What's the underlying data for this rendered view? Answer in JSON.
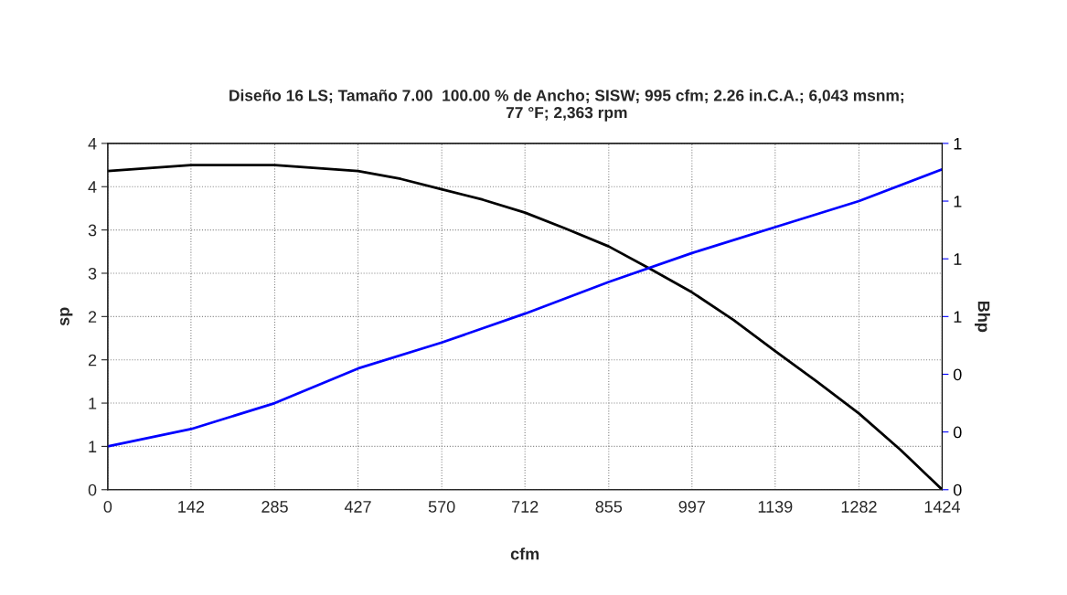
{
  "chart_data": {
    "type": "line",
    "title": "Diseño 16 LS; Tamaño 7.00  100.00 % de Ancho; SISW; 995 cfm; 2.26 in.C.A.; 6,043 msnm;\n77 °F; 2,363 rpm",
    "xlabel": "cfm",
    "ylabel": "sp",
    "y2label": "Bhp",
    "x": [
      0,
      142,
      213,
      285,
      427,
      500,
      570,
      640,
      712,
      780,
      855,
      926,
      997,
      1068,
      1139,
      1210,
      1282,
      1353,
      1424
    ],
    "series": [
      {
        "color": "#000000",
        "values": [
          3.68,
          3.75,
          3.75,
          3.75,
          3.68,
          3.59,
          3.47,
          3.35,
          3.2,
          3.02,
          2.81,
          2.55,
          2.28,
          1.96,
          1.6,
          1.25,
          0.88,
          0.46,
          0
        ]
      },
      {
        "color": "#0000ff",
        "axis": "y2",
        "x": [
          0,
          142,
          285,
          427,
          570,
          712,
          855,
          997,
          1139,
          1282,
          1424
        ],
        "values": [
          0.15,
          0.21,
          0.3,
          0.42,
          0.51,
          0.61,
          0.72,
          0.82,
          0.91,
          1.0,
          1.11
        ]
      }
    ],
    "xlim": [
      0,
      1424
    ],
    "xticks": [
      0,
      142,
      285,
      427,
      570,
      712,
      855,
      997,
      1139,
      1282,
      1424
    ],
    "ylim": [
      0,
      4
    ],
    "yticks": [
      0,
      {
        "value": 0.5,
        "label": "1"
      },
      1,
      {
        "value": 1.5,
        "label": "2"
      },
      2,
      {
        "value": 2.5,
        "label": "3"
      },
      3,
      {
        "value": 3.5,
        "label": "4"
      },
      4
    ],
    "y2lim": [
      0,
      1.2
    ],
    "y2ticks": [
      0,
      {
        "value": 0.2,
        "label": "0"
      },
      {
        "value": 0.4,
        "label": "0"
      },
      {
        "value": 0.6,
        "label": "1"
      },
      {
        "value": 0.8,
        "label": "1"
      },
      1,
      {
        "value": 1.2,
        "label": "1"
      }
    ],
    "grid": true,
    "line_style": "solid",
    "marker": "none"
  }
}
